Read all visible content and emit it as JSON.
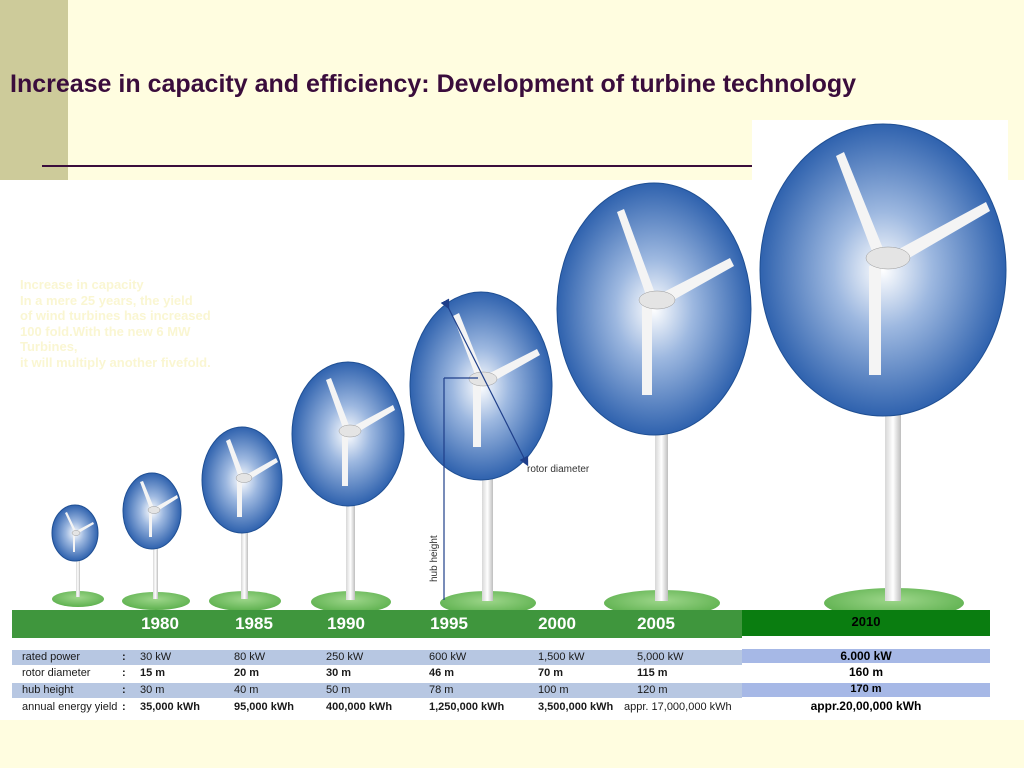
{
  "slide": {
    "title": "Increase in capacity and efficiency: Development of turbine technology"
  },
  "overlay_text": {
    "lines": [
      "Increase in capacity",
      "In a mere 25 years, the yield",
      "of wind turbines has increased",
      "100 fold.With the new 6 MW",
      "Turbines,",
      "it will multiply another fivefold."
    ]
  },
  "diagram": {
    "rotor_diameter_label": "rotor diameter",
    "hub_height_label": "hub height"
  },
  "table": {
    "years": [
      "1980",
      "1985",
      "1990",
      "1995",
      "2000",
      "2005"
    ],
    "rows": [
      {
        "label": "rated power",
        "values": [
          "30 kW",
          "80 kW",
          "250 kW",
          "600 kW",
          "1,500 kW",
          "5,000 kW"
        ]
      },
      {
        "label": "rotor diameter",
        "values": [
          "15 m",
          "20 m",
          "30 m",
          "46 m",
          "70 m",
          "115 m"
        ]
      },
      {
        "label": "hub height",
        "values": [
          "30 m",
          "40 m",
          "50 m",
          "78 m",
          "100 m",
          "120 m"
        ]
      },
      {
        "label": "annual energy yield",
        "values": [
          "35,000 kWh",
          "95,000 kWh",
          "400,000 kWh",
          "1,250,000 kWh",
          "3,500,000 kWh",
          "appr. 17,000,000 kWh"
        ]
      }
    ],
    "colon": ":"
  },
  "col_2010": {
    "year": "2010",
    "rated_power": "6.000 kW",
    "rotor_diameter": "160 m",
    "hub_height": "170 m",
    "annual_energy_yield": "appr.20,00,000 kWh"
  },
  "colors": {
    "title": "#3A0D3C",
    "background": "#FFFDE0",
    "year_bar": "#3F963D",
    "year_bar_2010": "#0A7D10",
    "rotor_blue": "#2F62AE"
  }
}
